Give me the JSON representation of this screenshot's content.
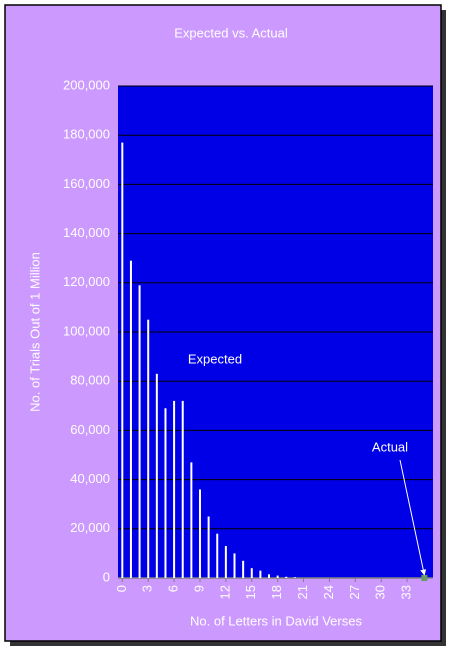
{
  "chart_data": {
    "type": "bar",
    "title": "Expected vs. Actual",
    "x_label": "No. of Letters in David Verses",
    "y_label": "No. of Trials Out of 1 Million",
    "series": [
      {
        "name": "Expected",
        "color": "#ffffff",
        "x": [
          0,
          1,
          2,
          3,
          4,
          5,
          6,
          7,
          8,
          9,
          10,
          11,
          12,
          13,
          14,
          15,
          16,
          17,
          18,
          19,
          20
        ],
        "values": [
          177000,
          129000,
          119000,
          105000,
          83000,
          69000,
          72000,
          72000,
          47000,
          36000,
          25000,
          18000,
          13000,
          10000,
          7000,
          4000,
          3000,
          1500,
          1000,
          500,
          300
        ]
      },
      {
        "name": "Actual",
        "color": "#669966",
        "x": [
          35
        ],
        "values": [
          0
        ]
      }
    ],
    "xlim": [
      -0.5,
      36
    ],
    "xticks": [
      0,
      3,
      6,
      9,
      12,
      15,
      18,
      21,
      24,
      27,
      30,
      33
    ],
    "ylim": [
      0,
      200000
    ],
    "yticks": [
      0,
      {
        "value": 20000,
        "label": "20,000"
      },
      {
        "value": 40000,
        "label": "40,000"
      },
      {
        "value": 60000,
        "label": "60,000"
      },
      {
        "value": 80000,
        "label": "80,000"
      },
      {
        "value": 100000,
        "label": "100,000"
      },
      {
        "value": 120000,
        "label": "120,000"
      },
      {
        "value": 140000,
        "label": "140,000"
      },
      {
        "value": 160000,
        "label": "160,000"
      },
      {
        "value": 180000,
        "label": "180,000"
      },
      {
        "value": 200000,
        "label": "200,000"
      }
    ],
    "grid": true,
    "plot_color": "#0000e6",
    "background": "#cc99ff"
  }
}
